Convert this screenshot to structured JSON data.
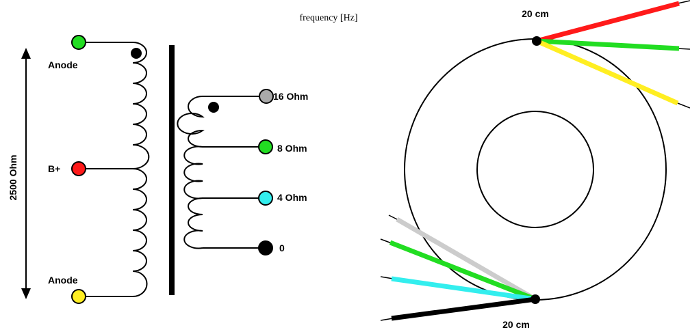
{
  "cropped_caption": "frequency [Hz]",
  "primary": {
    "terminals": [
      {
        "id": "anode-top",
        "label": "Anode",
        "color": "#22dd22"
      },
      {
        "id": "b-plus",
        "label": "B+",
        "color": "#ff1a1a"
      },
      {
        "id": "anode-bottom",
        "label": "Anode",
        "color": "#ffee22"
      }
    ],
    "impedance_label": "2500 Ohm"
  },
  "secondary": {
    "terminals": [
      {
        "id": "tap-16",
        "label": "16 Ohm",
        "color": "#aaaaaa"
      },
      {
        "id": "tap-8",
        "label": "8 Ohm",
        "color": "#22dd22"
      },
      {
        "id": "tap-4",
        "label": "4 Ohm",
        "color": "#33eeee"
      },
      {
        "id": "tap-0",
        "label": "0",
        "color": "#000000"
      }
    ]
  },
  "toroid": {
    "top_lead_length": "20 cm",
    "bottom_lead_length": "20 cm",
    "top_leads": [
      "#ff1a1a",
      "#22dd22",
      "#ffee22"
    ],
    "bottom_leads": [
      "#cccccc",
      "#22dd22",
      "#33eeee",
      "#000000"
    ]
  }
}
